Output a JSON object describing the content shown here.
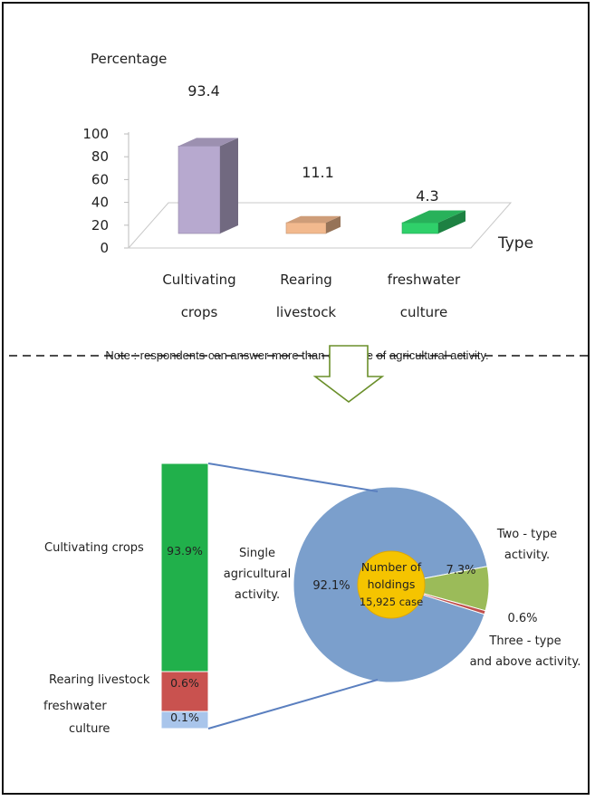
{
  "chart_data": [
    {
      "type": "bar",
      "ylabel": "Percentage",
      "xlabel": "Type",
      "ylim": [
        0,
        100
      ],
      "yticks": [
        "0",
        "20",
        "40",
        "60",
        "80",
        "100"
      ],
      "categories": [
        [
          "Cultivating",
          "crops"
        ],
        [
          "Rearing",
          "livestock"
        ],
        [
          "freshwater",
          "culture"
        ]
      ],
      "values": [
        93.4,
        11.1,
        4.3
      ],
      "value_labels": [
        "93.4",
        "11.1",
        "4.3"
      ],
      "colors": [
        "#b7a9cf",
        "#f2b98e",
        "#2fd06a"
      ],
      "note": "Note : respondents can answer  more than one type of agricultural activity."
    },
    {
      "type": "pie",
      "center_label": [
        "Number of",
        "holdings",
        "15,925 case"
      ],
      "slices": [
        {
          "value": 92.1,
          "label": "92.1%",
          "caption": [
            "Single",
            "agricultural",
            "activity."
          ],
          "color": "#7b9fcc"
        },
        {
          "value": 7.3,
          "label": "7.3%",
          "caption": [
            "Two - type",
            "activity."
          ],
          "color": "#9bbb59"
        },
        {
          "value": 0.6,
          "label": "0.6%",
          "caption": [
            "Three - type",
            "and above activity."
          ],
          "color": "#c0504d"
        }
      ]
    },
    {
      "type": "bar",
      "stacked": true,
      "segments": [
        {
          "name": [
            "Cultivating  crops"
          ],
          "value": 93.9,
          "label": "93.9%",
          "color": "#21b04b"
        },
        {
          "name": [
            "Rearing  livestock"
          ],
          "value": 0.6,
          "label": "0.6%",
          "color": "#c9524f"
        },
        {
          "name": [
            "freshwater",
            "culture"
          ],
          "value": 0.1,
          "label": "0.1%",
          "color": "#a9c5eb"
        }
      ]
    }
  ]
}
